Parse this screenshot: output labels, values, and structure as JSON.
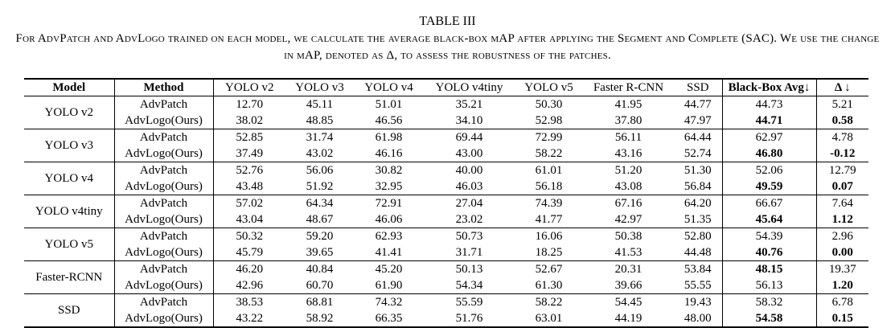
{
  "header": {
    "title": "TABLE III",
    "caption": "For AdvPatch and AdvLogo trained on each model, we calculate the average black-box mAP after applying the Segment and Complete (SAC). We use the change in mAP, denoted as Δ, to assess the robustness of the patches."
  },
  "table": {
    "columns": [
      "Model",
      "Method",
      "YOLO v2",
      "YOLO v3",
      "YOLO v4",
      "YOLO v4tiny",
      "YOLO v5",
      "Faster R-CNN",
      "SSD",
      "Black-Box Avg↓",
      "Δ ↓"
    ],
    "bold_columns": [
      0,
      1,
      9,
      10
    ],
    "groups": [
      {
        "model": "YOLO v2",
        "rows": [
          {
            "method": "AdvPatch",
            "cells": [
              "12.70",
              "45.11",
              "51.01",
              "35.21",
              "50.30",
              "41.95",
              "44.77",
              "44.73",
              "5.21"
            ],
            "bold": []
          },
          {
            "method": "AdvLogo(Ours)",
            "cells": [
              "38.02",
              "48.85",
              "46.56",
              "34.10",
              "52.98",
              "37.80",
              "47.97",
              "44.71",
              "0.58"
            ],
            "bold": [
              7,
              8
            ]
          }
        ]
      },
      {
        "model": "YOLO v3",
        "rows": [
          {
            "method": "AdvPatch",
            "cells": [
              "52.85",
              "31.74",
              "61.98",
              "69.44",
              "72.99",
              "56.11",
              "64.44",
              "62.97",
              "4.78"
            ],
            "bold": []
          },
          {
            "method": "AdvLogo(Ours)",
            "cells": [
              "37.49",
              "43.02",
              "46.16",
              "43.00",
              "58.22",
              "43.16",
              "52.74",
              "46.80",
              "-0.12"
            ],
            "bold": [
              7,
              8
            ]
          }
        ]
      },
      {
        "model": "YOLO v4",
        "rows": [
          {
            "method": "AdvPatch",
            "cells": [
              "52.76",
              "56.06",
              "30.82",
              "40.00",
              "61.01",
              "51.20",
              "51.30",
              "52.06",
              "12.79"
            ],
            "bold": []
          },
          {
            "method": "AdvLogo(Ours)",
            "cells": [
              "43.48",
              "51.92",
              "32.95",
              "46.03",
              "56.18",
              "43.08",
              "56.84",
              "49.59",
              "0.07"
            ],
            "bold": [
              7,
              8
            ]
          }
        ]
      },
      {
        "model": "YOLO v4tiny",
        "rows": [
          {
            "method": "AdvPatch",
            "cells": [
              "57.02",
              "64.34",
              "72.91",
              "27.04",
              "74.39",
              "67.16",
              "64.20",
              "66.67",
              "7.64"
            ],
            "bold": []
          },
          {
            "method": "AdvLogo(Ours)",
            "cells": [
              "43.04",
              "48.67",
              "46.06",
              "23.02",
              "41.77",
              "42.97",
              "51.35",
              "45.64",
              "1.12"
            ],
            "bold": [
              7,
              8
            ]
          }
        ]
      },
      {
        "model": "YOLO v5",
        "rows": [
          {
            "method": "AdvPatch",
            "cells": [
              "50.32",
              "59.20",
              "62.93",
              "50.73",
              "16.06",
              "50.38",
              "52.80",
              "54.39",
              "2.96"
            ],
            "bold": []
          },
          {
            "method": "AdvLogo(Ours)",
            "cells": [
              "45.79",
              "39.65",
              "41.41",
              "31.71",
              "18.25",
              "41.53",
              "44.48",
              "40.76",
              "0.00"
            ],
            "bold": [
              7,
              8
            ]
          }
        ]
      },
      {
        "model": "Faster-RCNN",
        "rows": [
          {
            "method": "AdvPatch",
            "cells": [
              "46.20",
              "40.84",
              "45.20",
              "50.13",
              "52.67",
              "20.31",
              "53.84",
              "48.15",
              "19.37"
            ],
            "bold": [
              7
            ]
          },
          {
            "method": "AdvLogo(Ours)",
            "cells": [
              "42.96",
              "60.70",
              "61.90",
              "54.34",
              "61.30",
              "39.66",
              "55.55",
              "56.13",
              "1.20"
            ],
            "bold": [
              8
            ]
          }
        ]
      },
      {
        "model": "SSD",
        "rows": [
          {
            "method": "AdvPatch",
            "cells": [
              "38.53",
              "68.81",
              "74.32",
              "55.59",
              "58.22",
              "54.45",
              "19.43",
              "58.32",
              "6.78"
            ],
            "bold": []
          },
          {
            "method": "AdvLogo(Ours)",
            "cells": [
              "43.22",
              "58.92",
              "66.35",
              "51.76",
              "63.01",
              "44.19",
              "48.00",
              "54.58",
              "0.15"
            ],
            "bold": [
              7,
              8
            ]
          }
        ]
      }
    ]
  }
}
